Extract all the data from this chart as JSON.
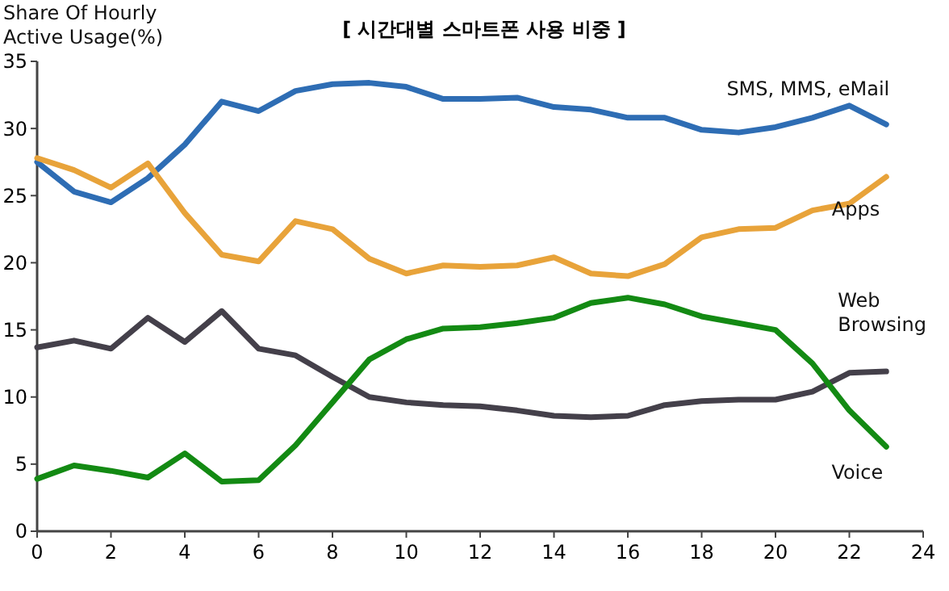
{
  "chart_data": {
    "type": "line",
    "title": "[ 시간대별 스마트폰 사용 비중 ]",
    "ylabel": "Share Of  Hourly Active Usage(%)",
    "x": [
      0,
      1,
      2,
      3,
      4,
      5,
      6,
      7,
      8,
      9,
      10,
      11,
      12,
      13,
      14,
      15,
      16,
      17,
      18,
      19,
      20,
      21,
      22,
      23
    ],
    "xlim": [
      0,
      24
    ],
    "xticks": [
      0,
      2,
      4,
      6,
      8,
      10,
      12,
      14,
      16,
      18,
      20,
      22,
      24
    ],
    "ylim": [
      0,
      35
    ],
    "yticks": [
      0,
      5,
      10,
      15,
      20,
      25,
      30,
      35
    ],
    "grid": false,
    "legend": false,
    "marker": "none",
    "line_style": "solid",
    "series": [
      {
        "name": "SMS, MMS, eMail",
        "color": "#2e6db4",
        "values": [
          27.5,
          25.3,
          24.5,
          26.3,
          28.8,
          32,
          31.3,
          32.8,
          33.3,
          33.4,
          33.1,
          32.2,
          32.2,
          32.3,
          31.6,
          31.4,
          30.8,
          30.8,
          29.9,
          29.7,
          30.1,
          30.8,
          31.7,
          30.3
        ]
      },
      {
        "name": "Apps",
        "color": "#e8a33a",
        "values": [
          27.8,
          26.9,
          25.6,
          27.4,
          23.7,
          20.6,
          20.1,
          23.1,
          22.5,
          20.3,
          19.2,
          19.8,
          19.7,
          19.8,
          20.4,
          19.2,
          19,
          19.9,
          21.9,
          22.5,
          22.6,
          23.9,
          24.4,
          26.4
        ]
      },
      {
        "name": "Web Browsing",
        "color": "#44404a",
        "values": [
          13.7,
          14.2,
          13.6,
          15.9,
          14.1,
          16.4,
          13.6,
          13.1,
          11.5,
          10,
          9.6,
          9.4,
          9.3,
          9,
          8.6,
          8.5,
          8.6,
          9.4,
          9.7,
          9.8,
          9.8,
          10.4,
          11.8,
          11.9
        ]
      },
      {
        "name": "Voice",
        "color": "#138a13",
        "values": [
          3.9,
          4.9,
          4.5,
          4,
          5.8,
          3.7,
          3.8,
          6.4,
          9.6,
          12.8,
          14.3,
          15.1,
          15.2,
          15.5,
          15.9,
          17,
          17.4,
          16.9,
          16,
          15.5,
          15,
          12.5,
          9,
          6.3
        ]
      }
    ]
  }
}
